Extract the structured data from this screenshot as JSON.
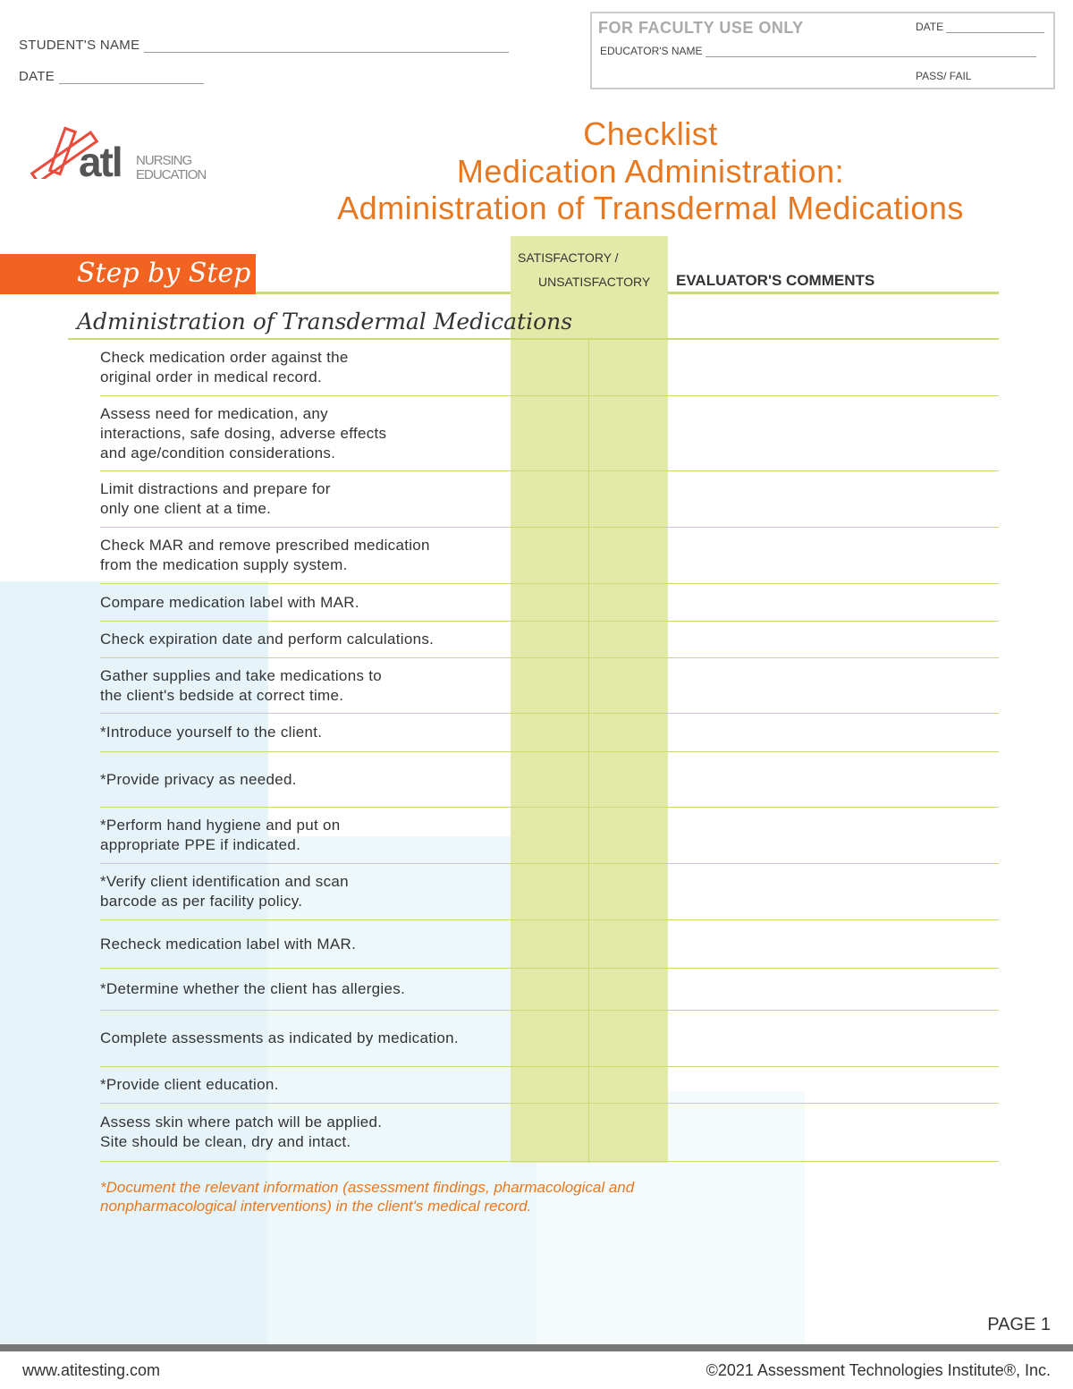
{
  "header": {
    "student_name_label": "STUDENT'S NAME",
    "date_label": "DATE",
    "faculty": {
      "title": "FOR FACULTY USE ONLY",
      "date_label": "DATE",
      "educator_label": "EDUCATOR'S NAME",
      "pass_fail_label": "PASS/ FAIL"
    }
  },
  "logo": {
    "mark": "atl",
    "line1": "NURSING",
    "line2": "EDUCATION"
  },
  "title": {
    "line1": "Checklist",
    "line2": "Medication Administration:",
    "line3": "Administration of Transdermal Medications"
  },
  "table": {
    "step_label": "Step by Step",
    "sat_line1": "SATISFACTORY /",
    "sat_line2": "UNSATISFACTORY",
    "comments_label": "EVALUATOR'S COMMENTS",
    "section_title": "Administration of Transdermal Medications",
    "rows": [
      "Check medication order against the\noriginal order in medical record.",
      "Assess need for medication, any\ninteractions, safe dosing, adverse effects\nand age/condition considerations.",
      "Limit distractions and prepare for\nonly one client at a time.",
      "Check MAR and remove prescribed medication\nfrom the medication supply system.",
      "Compare medication label with MAR.",
      "Check expiration date and perform calculations.",
      "Gather supplies and take medications to\nthe client's bedside at correct time.",
      "*Introduce yourself to the client.",
      "*Provide privacy as needed.",
      "*Perform hand hygiene and put on\nappropriate PPE if indicated.",
      "*Verify client identification and scan\nbarcode as per facility policy.",
      "Recheck medication label with MAR.",
      "*Determine whether the client has allergies.",
      "Complete assessments as indicated by medication.",
      "*Provide client education.",
      "Assess skin where patch will be applied.\nSite should be clean, dry and intact."
    ],
    "note": "*Document the relevant information (assessment findings, pharmacological and\nnonpharmacological interventions) in the client's medical record."
  },
  "footer": {
    "page": "PAGE 1",
    "website": "www.atitesting.com",
    "copyright": "©2021 Assessment Technologies Institute®, Inc."
  },
  "colors": {
    "accent_orange": "#e8781f",
    "step_bar": "#f26322",
    "green_column": "#e3eaa9",
    "green_rule": "#c9dc72"
  }
}
